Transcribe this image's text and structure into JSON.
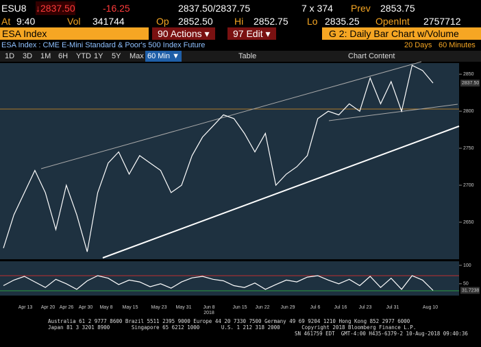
{
  "quote": {
    "ticker": "ESU8",
    "last": "↓2837.50",
    "change": "-16.25",
    "bid_ask": "2837.50/2837.75",
    "size": "7 x 374",
    "prev_label": "Prev",
    "prev": "2853.75",
    "at_label": "At",
    "time": "9:40",
    "vol_label": "Vol",
    "vol": "341744",
    "op_label": "Op",
    "op": "2852.50",
    "hi_label": "Hi",
    "hi": "2852.75",
    "lo_label": "Lo",
    "lo": "2835.25",
    "oi_label": "OpenInt",
    "oi": "2757712"
  },
  "menu": {
    "security": "ESA Index",
    "actions": "90 Actions ▾",
    "edit": "97 Edit ▾",
    "chart_name": "G 2: Daily Bar Chart w/Volume"
  },
  "subtitle": {
    "description": "ESA Index : CME E-Mini Standard & Poor's 500 Index Future",
    "range": "20 Days",
    "interval": "60 Minutes"
  },
  "toolbar": {
    "periods": [
      "1D",
      "3D",
      "1M",
      "6H",
      "YTD",
      "1Y",
      "5Y",
      "Max"
    ],
    "frequency": "60 Min ▼",
    "table": "Table",
    "chart_content": "Chart Content"
  },
  "price_chart": {
    "values": [
      2615,
      2660,
      2690,
      2720,
      2690,
      2640,
      2700,
      2660,
      2610,
      2690,
      2730,
      2745,
      2715,
      2740,
      2730,
      2720,
      2690,
      2700,
      2740,
      2765,
      2780,
      2795,
      2790,
      2770,
      2745,
      2770,
      2700,
      2715,
      2725,
      2740,
      2790,
      2800,
      2795,
      2810,
      2800,
      2845,
      2810,
      2840,
      2800,
      2862,
      2855,
      2838
    ],
    "ylim": [
      2600,
      2865
    ],
    "yticks": [
      2650,
      2700,
      2750,
      2800,
      2850
    ],
    "last_label": "2837.50",
    "color": "#ffffff"
  },
  "oscillator": {
    "values": [
      45,
      60,
      70,
      55,
      40,
      62,
      50,
      35,
      58,
      72,
      65,
      48,
      60,
      55,
      42,
      50,
      38,
      55,
      66,
      70,
      62,
      58,
      45,
      40,
      52,
      35,
      48,
      60,
      55,
      68,
      72,
      60,
      50,
      62,
      45,
      70,
      40,
      65,
      35,
      72,
      60,
      32
    ],
    "ylim": [
      18,
      111
    ],
    "yticks": [
      50,
      100
    ],
    "last_label": "31.7238",
    "color": "#ffffff"
  },
  "x_axis": {
    "labels": [
      "Apr 13",
      "Apr 20",
      "Apr 26",
      "Apr 30",
      "May 8",
      "May 15",
      "May 23",
      "May 31",
      "Jun 8",
      "Jun 15",
      "Jun 22",
      "Jun 29",
      "Jul 6",
      "Jul 16",
      "Jul 23",
      "Jul 31",
      "Aug 10"
    ],
    "year": "2018"
  },
  "footer": {
    "lines": [
      "Australia 61 2 9777 8600 Brazil 5511 2395 9000 Europe 44 20 7330 7500 Germany 49 69 9204 1210 Hong Kong 852 2977 6000",
      "Japan 81 3 3201 8900       Singapore 65 6212 1000       U.S. 1 212 318 2000       Copyright 2018 Bloomberg Finance L.P.",
      "SN 461759 EDT  GMT-4:00 H435-6379-2 10-Aug-2018 09:40:36"
    ]
  }
}
